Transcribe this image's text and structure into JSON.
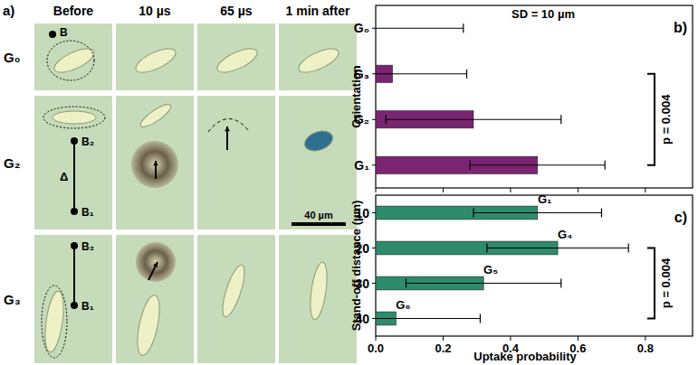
{
  "panel_a": {
    "label": "a)",
    "columns": [
      "Before",
      "10 µs",
      "65 µs",
      "1 min after"
    ],
    "rows": [
      {
        "name": "G₀",
        "points": [
          "B"
        ]
      },
      {
        "name": "G₂",
        "points": [
          "B₂",
          "B₁"
        ],
        "distance": "Δ",
        "scale_bar": "40 µm"
      },
      {
        "name": "G₃",
        "points": [
          "B₂",
          "B₁"
        ]
      }
    ]
  },
  "chart_data": [
    {
      "type": "bar",
      "orientation": "horizontal",
      "panel_label": "b)",
      "y_label": "Orientation",
      "categories": [
        "G₀",
        "G₃",
        "G₂",
        "G₁"
      ],
      "values": [
        0,
        0.05,
        0.29,
        0.48
      ],
      "errors": [
        0.26,
        0.22,
        0.26,
        0.2
      ],
      "color": "#7b2471",
      "xlim": [
        0,
        0.94
      ],
      "xticks": [
        {
          "value": 0,
          "label": "0.0"
        },
        {
          "value": 0.2,
          "label": "0.2"
        },
        {
          "value": 0.4,
          "label": "0.4"
        },
        {
          "value": 0.6,
          "label": "0.6"
        },
        {
          "value": 0.8,
          "label": "0.8"
        }
      ],
      "tick_labels": "y",
      "annotations": [
        {
          "text": "SD = 10 µm"
        },
        {
          "text": "p = 0.004",
          "from": "G₃",
          "to": "G₁"
        }
      ]
    },
    {
      "type": "bar",
      "orientation": "horizontal",
      "panel_label": "c)",
      "y_label": "Stand-off distance (µm)",
      "x_label": "Uptake probability",
      "categories": [
        "10",
        "20",
        "30",
        "40"
      ],
      "values": [
        0.48,
        0.54,
        0.32,
        0.06
      ],
      "errors": [
        0.19,
        0.21,
        0.23,
        0.25
      ],
      "bar_labels": [
        "G₁",
        "G₄",
        "G₅",
        "G₆"
      ],
      "color": "#2e8b6b",
      "xlim": [
        0,
        0.94
      ],
      "xticks": [
        {
          "value": 0,
          "label": "0.0"
        },
        {
          "value": 0.2,
          "label": "0.2"
        },
        {
          "value": 0.4,
          "label": "0.4"
        },
        {
          "value": 0.6,
          "label": "0.6"
        },
        {
          "value": 0.8,
          "label": "0.8"
        }
      ],
      "annotations": [
        {
          "text": "p = 0.004",
          "from": "20",
          "to": "40"
        }
      ]
    }
  ]
}
